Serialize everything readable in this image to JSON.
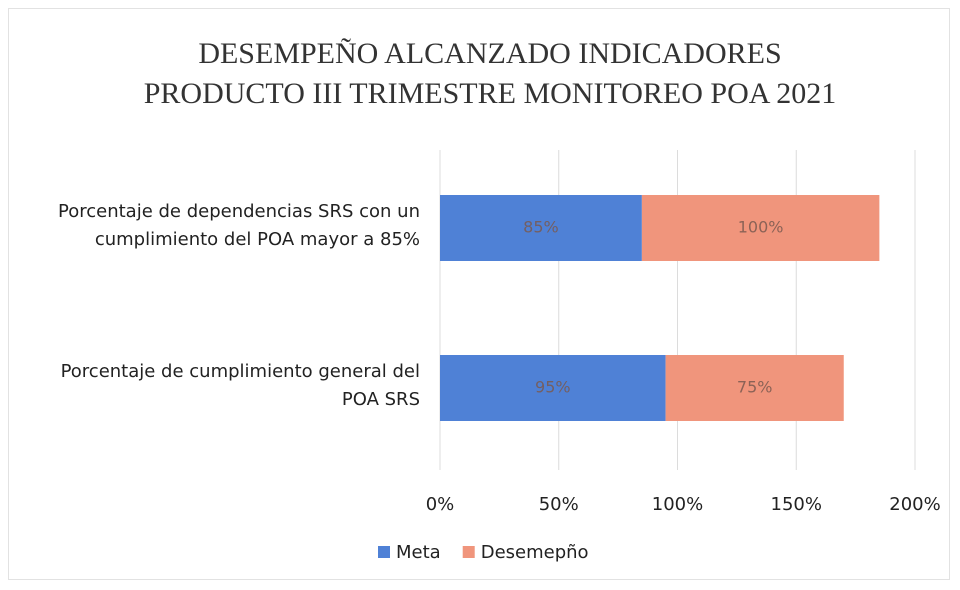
{
  "chart_data": {
    "type": "stacked-bar-horizontal",
    "title": "DESEMPEÑO ALCANZADO INDICADORES PRODUCTO III TRIMESTRE MONITOREO POA 2021",
    "categories": [
      "Porcentaje de dependencias SRS con un cumplimiento del POA mayor a 85%",
      "Porcentaje de cumplimiento general del POA SRS"
    ],
    "series": [
      {
        "name": "Meta",
        "color": "#4f81d6",
        "values": [
          85,
          95
        ],
        "value_labels": [
          "85%",
          "95%"
        ]
      },
      {
        "name": "Desemepño",
        "color": "#f0957c",
        "values": [
          100,
          75
        ],
        "value_labels": [
          "100%",
          "75%"
        ]
      }
    ],
    "xlim": [
      0,
      200
    ],
    "xticks": [
      {
        "value": 0,
        "label": "0%"
      },
      {
        "value": 50,
        "label": "50%"
      },
      {
        "value": 100,
        "label": "100%"
      },
      {
        "value": 150,
        "label": "150%"
      },
      {
        "value": 200,
        "label": "200%"
      }
    ],
    "grid": true,
    "legend": "bottom"
  }
}
